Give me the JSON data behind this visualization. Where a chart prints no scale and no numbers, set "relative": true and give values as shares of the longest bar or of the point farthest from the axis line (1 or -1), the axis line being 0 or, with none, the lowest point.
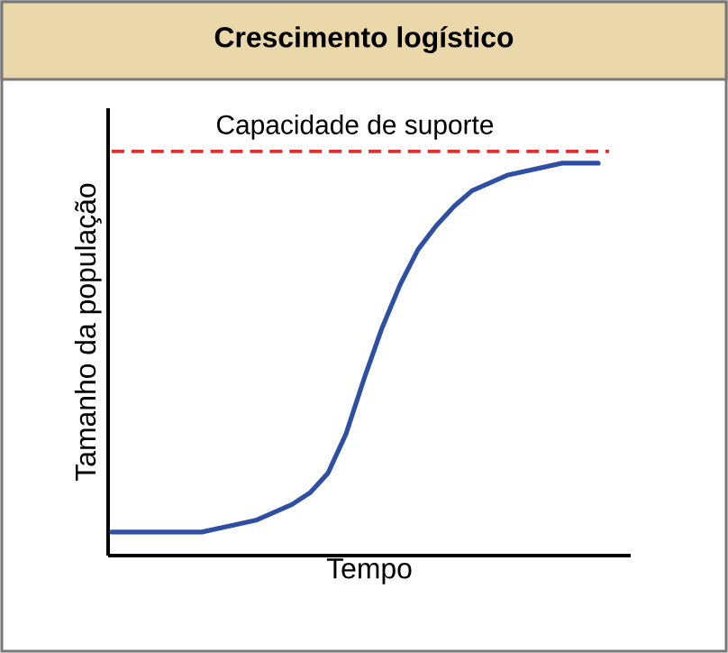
{
  "chart_data": {
    "type": "line",
    "title": "Crescimento logístico",
    "xlabel": "Tempo",
    "ylabel": "Tamanho da população",
    "relative": true,
    "categories": [
      null,
      null,
      null,
      null,
      null,
      null,
      null,
      null,
      null,
      null,
      null,
      null,
      null,
      null,
      null,
      null,
      null,
      null,
      null,
      null,
      null,
      null,
      null,
      null,
      null,
      null,
      null,
      null
    ],
    "series": [
      {
        "color": "#2e4fa3",
        "values": [
          0.06,
          0.06,
          0.06,
          0.06,
          0.06,
          0.06,
          0.07,
          0.08,
          0.09,
          0.11,
          0.13,
          0.16,
          0.21,
          0.31,
          0.45,
          0.58,
          0.69,
          0.78,
          0.84,
          0.89,
          0.93,
          0.95,
          0.97,
          0.98,
          0.99,
          1.0,
          1.0,
          1.0
        ]
      }
    ],
    "ref_lines": [
      {
        "axis": "y",
        "value": 1.03,
        "label": "Capacidade de suporte",
        "color": "#e0312f",
        "line_style": "dashed"
      }
    ],
    "marker": "none",
    "line_style": "solid"
  }
}
